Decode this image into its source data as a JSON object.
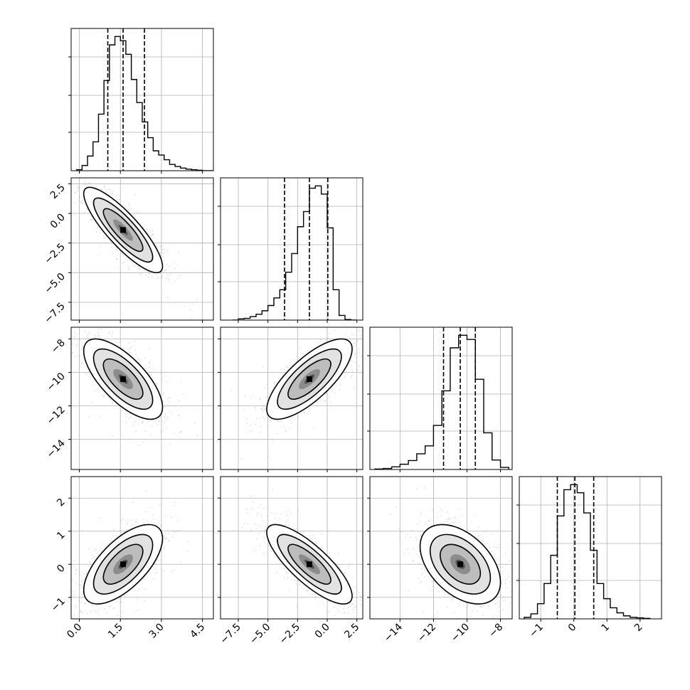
{
  "chart_data": {
    "type": "corner",
    "n_params": 4,
    "axes_limits": [
      [
        -0.3,
        4.9
      ],
      [
        -9.0,
        3.0
      ],
      [
        -15.8,
        -7.3
      ],
      [
        -1.65,
        2.65
      ]
    ],
    "quantiles": [
      0.16,
      0.5,
      0.84
    ],
    "quantile_values": [
      [
        1.04,
        1.6,
        2.38
      ],
      [
        -3.6,
        -1.5,
        0.05
      ],
      [
        -11.4,
        -10.4,
        -9.5
      ],
      [
        -0.5,
        0.03,
        0.6
      ]
    ],
    "grid": true,
    "histograms": [
      {
        "param": 0,
        "bin_edges": [
          -0.1,
          0.1,
          0.3,
          0.5,
          0.7,
          0.9,
          1.1,
          1.3,
          1.5,
          1.7,
          1.9,
          2.1,
          2.3,
          2.5,
          2.7,
          2.9,
          3.1,
          3.3,
          3.5,
          3.7,
          3.9,
          4.1,
          4.3,
          4.5,
          4.7,
          4.9
        ],
        "counts": [
          2,
          10,
          28,
          55,
          108,
          172,
          240,
          256,
          248,
          222,
          174,
          130,
          93,
          63,
          38,
          30,
          21,
          12,
          8,
          5,
          3,
          2,
          1,
          0,
          0
        ]
      },
      {
        "param": 1,
        "bin_edges": [
          -8.0,
          -7.5,
          -7.0,
          -6.5,
          -6.0,
          -5.5,
          -5.0,
          -4.5,
          -4.0,
          -3.5,
          -3.0,
          -2.5,
          -2.0,
          -1.5,
          -1.0,
          -0.5,
          0.0,
          0.5,
          1.0,
          1.5,
          2.0,
          2.5
        ],
        "counts": [
          0,
          2,
          3,
          6,
          10,
          16,
          25,
          38,
          52,
          82,
          114,
          160,
          186,
          226,
          230,
          216,
          158,
          52,
          8,
          1,
          0
        ]
      },
      {
        "param": 2,
        "bin_edges": [
          -15.5,
          -15.0,
          -14.5,
          -14.0,
          -13.5,
          -13.0,
          -12.5,
          -12.0,
          -11.5,
          -11.0,
          -10.5,
          -10.0,
          -9.5,
          -9.0,
          -8.5,
          -8.0,
          -7.5
        ],
        "counts": [
          1,
          2,
          5,
          10,
          17,
          30,
          45,
          84,
          150,
          232,
          256,
          248,
          172,
          70,
          18,
          4
        ]
      },
      {
        "param": 3,
        "bin_edges": [
          -1.5,
          -1.3,
          -1.1,
          -0.9,
          -0.7,
          -0.5,
          -0.3,
          -0.1,
          0.1,
          0.3,
          0.5,
          0.7,
          0.9,
          1.1,
          1.3,
          1.5,
          1.7,
          1.9,
          2.1,
          2.3
        ],
        "counts": [
          3,
          10,
          30,
          70,
          126,
          204,
          256,
          266,
          250,
          210,
          136,
          70,
          40,
          22,
          12,
          6,
          3,
          2,
          1
        ]
      }
    ],
    "pairs": [
      {
        "x": 0,
        "y": 1,
        "x_mean": 1.6,
        "y_mean": -1.4,
        "x_std": 0.6,
        "y_std": 1.5,
        "corr": -0.85
      },
      {
        "x": 0,
        "y": 2,
        "x_mean": 1.6,
        "y_mean": -10.4,
        "x_std": 0.6,
        "y_std": 1.0,
        "corr": -0.7
      },
      {
        "x": 1,
        "y": 2,
        "x_mean": -1.5,
        "y_mean": -10.4,
        "x_std": 1.5,
        "y_std": 1.0,
        "corr": 0.75
      },
      {
        "x": 0,
        "y": 3,
        "x_mean": 1.6,
        "y_mean": 0.0,
        "x_std": 0.6,
        "y_std": 0.5,
        "corr": 0.65
      },
      {
        "x": 1,
        "y": 3,
        "x_mean": -1.5,
        "y_mean": 0.0,
        "x_std": 1.5,
        "y_std": 0.5,
        "corr": -0.8
      },
      {
        "x": 2,
        "y": 3,
        "x_mean": -10.4,
        "y_mean": 0.0,
        "x_std": 1.0,
        "y_std": 0.5,
        "corr": -0.45
      }
    ],
    "x_ticks": [
      {
        "values": [
          0.0,
          1.5,
          3.0,
          4.5
        ],
        "labels": [
          "0.0",
          "1.5",
          "3.0",
          "4.5"
        ]
      },
      {
        "values": [
          -7.5,
          -5.0,
          -2.5,
          0.0,
          2.5
        ],
        "labels": [
          "−7.5",
          "−5.0",
          "−2.5",
          "0.0",
          "2.5"
        ]
      },
      {
        "values": [
          -14,
          -12,
          -10,
          -8
        ],
        "labels": [
          "−14",
          "−12",
          "−10",
          "−8"
        ]
      },
      {
        "values": [
          -1,
          0,
          1,
          2
        ],
        "labels": [
          "−1",
          "0",
          "1",
          "2"
        ]
      }
    ],
    "y_ticks": [
      null,
      {
        "values": [
          2.5,
          0.0,
          -2.5,
          -5.0,
          -7.5
        ],
        "labels": [
          "2.5",
          "0.0",
          "−2.5",
          "−5.0",
          "−7.5"
        ]
      },
      {
        "values": [
          -8,
          -10,
          -12,
          -14
        ],
        "labels": [
          "−8",
          "−10",
          "−12",
          "−14"
        ]
      },
      {
        "values": [
          2,
          1,
          0,
          -1
        ],
        "labels": [
          "2",
          "1",
          "0",
          "−1"
        ]
      }
    ],
    "colors": {
      "line": "#000000",
      "scatter": "#9a9a9a",
      "grid": "#b0b0b0",
      "quantile": "#000000"
    }
  }
}
